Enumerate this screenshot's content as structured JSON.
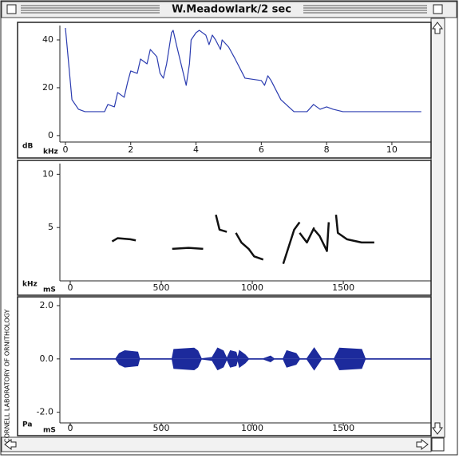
{
  "window": {
    "title": "W.Meadowlark/2 sec",
    "side_text": "CORNELL LABORATORY OF ORNITHOLOGY"
  },
  "chart_data": [
    {
      "type": "line",
      "ylabel": "dB",
      "xlabel": "kHz",
      "xlim": [
        -0.17,
        11.2
      ],
      "ylim": [
        -2.7,
        46
      ],
      "xticks": [
        0,
        2,
        4,
        6,
        8,
        10
      ],
      "yticks": [
        0,
        20,
        40
      ],
      "series": [
        {
          "color": "#2b3cb0",
          "x": [
            0,
            0.1,
            0.2,
            0.4,
            0.6,
            1.2,
            1.3,
            1.5,
            1.6,
            1.8,
            1.9,
            2.0,
            2.2,
            2.3,
            2.5,
            2.6,
            2.8,
            2.9,
            3.0,
            3.1,
            3.25,
            3.3,
            3.4,
            3.7,
            3.8,
            3.85,
            4.0,
            4.1,
            4.3,
            4.4,
            4.5,
            4.6,
            4.75,
            4.8,
            5.0,
            5.2,
            5.5,
            6.0,
            6.1,
            6.2,
            6.3,
            6.6,
            7.0,
            7.4,
            7.6,
            7.8,
            8.0,
            8.2,
            8.5,
            10.9
          ],
          "values": [
            45,
            30,
            15,
            11,
            10,
            10,
            13,
            12,
            18,
            16,
            22,
            27,
            26,
            32,
            30,
            36,
            33,
            26,
            24,
            30,
            43,
            44,
            38,
            21,
            30,
            40,
            43,
            44,
            42,
            38,
            42,
            40,
            36,
            40,
            37,
            32,
            24,
            23,
            21,
            25,
            23,
            15,
            10,
            10,
            13,
            11,
            12,
            11,
            10,
            10
          ]
        }
      ]
    },
    {
      "type": "line",
      "ylabel": "kHz",
      "xlabel": "mS",
      "xlim": [
        -57,
        1982
      ],
      "ylim": [
        0,
        11
      ],
      "xticks": [
        0,
        500,
        1000,
        1500
      ],
      "yticks": [
        5,
        10
      ],
      "series": [
        {
          "color": "#111111",
          "x": [
            230,
            260,
            330,
            360
          ],
          "values": [
            3.7,
            4.0,
            3.9,
            3.8
          ]
        },
        {
          "color": "#111111",
          "x": [
            560,
            650,
            730
          ],
          "values": [
            3.0,
            3.1,
            3.0
          ]
        },
        {
          "color": "#111111",
          "x": [
            800,
            820,
            860
          ],
          "values": [
            6.2,
            4.8,
            4.6
          ]
        },
        {
          "color": "#111111",
          "x": [
            910,
            940,
            980,
            1010,
            1060
          ],
          "values": [
            4.5,
            3.6,
            3.0,
            2.3,
            2.0
          ]
        },
        {
          "color": "#111111",
          "x": [
            1170,
            1200,
            1230,
            1260
          ],
          "values": [
            1.6,
            3.2,
            4.8,
            5.5
          ]
        },
        {
          "color": "#111111",
          "x": [
            1260,
            1300,
            1340
          ],
          "values": [
            4.5,
            3.6,
            5.0
          ]
        },
        {
          "color": "#111111",
          "x": [
            1340,
            1370,
            1410,
            1420
          ],
          "values": [
            4.8,
            4.2,
            2.8,
            5.5
          ]
        },
        {
          "color": "#111111",
          "x": [
            1460,
            1470,
            1520,
            1600,
            1670
          ],
          "values": [
            6.2,
            4.5,
            3.9,
            3.6,
            3.6
          ]
        }
      ]
    },
    {
      "type": "waveform",
      "ylabel": "Pa",
      "xlabel": "mS",
      "xlim": [
        -57,
        1982
      ],
      "ylim": [
        -2.4,
        2.3
      ],
      "xticks": [
        0,
        500,
        1000,
        1500
      ],
      "yticks": [
        {
          "value": 2,
          "label": "2.0"
        },
        {
          "value": 0,
          "label": "0.0"
        },
        {
          "value": -2,
          "label": "-2.0"
        }
      ],
      "series": [
        {
          "color": "#1c2a9c",
          "x": [
            0,
            250,
            270,
            300,
            370,
            380,
            560,
            570,
            680,
            700,
            720,
            780,
            810,
            840,
            860,
            880,
            910,
            920,
            930,
            960,
            980,
            1060,
            1100,
            1120,
            1170,
            1190,
            1240,
            1260,
            1300,
            1340,
            1360,
            1380,
            1450,
            1480,
            1600,
            1620,
            1980
          ],
          "values": [
            0,
            0,
            0.2,
            0.3,
            0.25,
            0,
            0,
            0.35,
            0.4,
            0.3,
            0,
            0.05,
            0.4,
            0.3,
            0,
            0.3,
            0.25,
            0,
            0.3,
            0.15,
            0,
            0,
            0.1,
            0,
            0,
            0.3,
            0.2,
            0,
            0,
            0.4,
            0.2,
            0,
            0,
            0.4,
            0.35,
            0,
            0
          ]
        }
      ]
    }
  ]
}
